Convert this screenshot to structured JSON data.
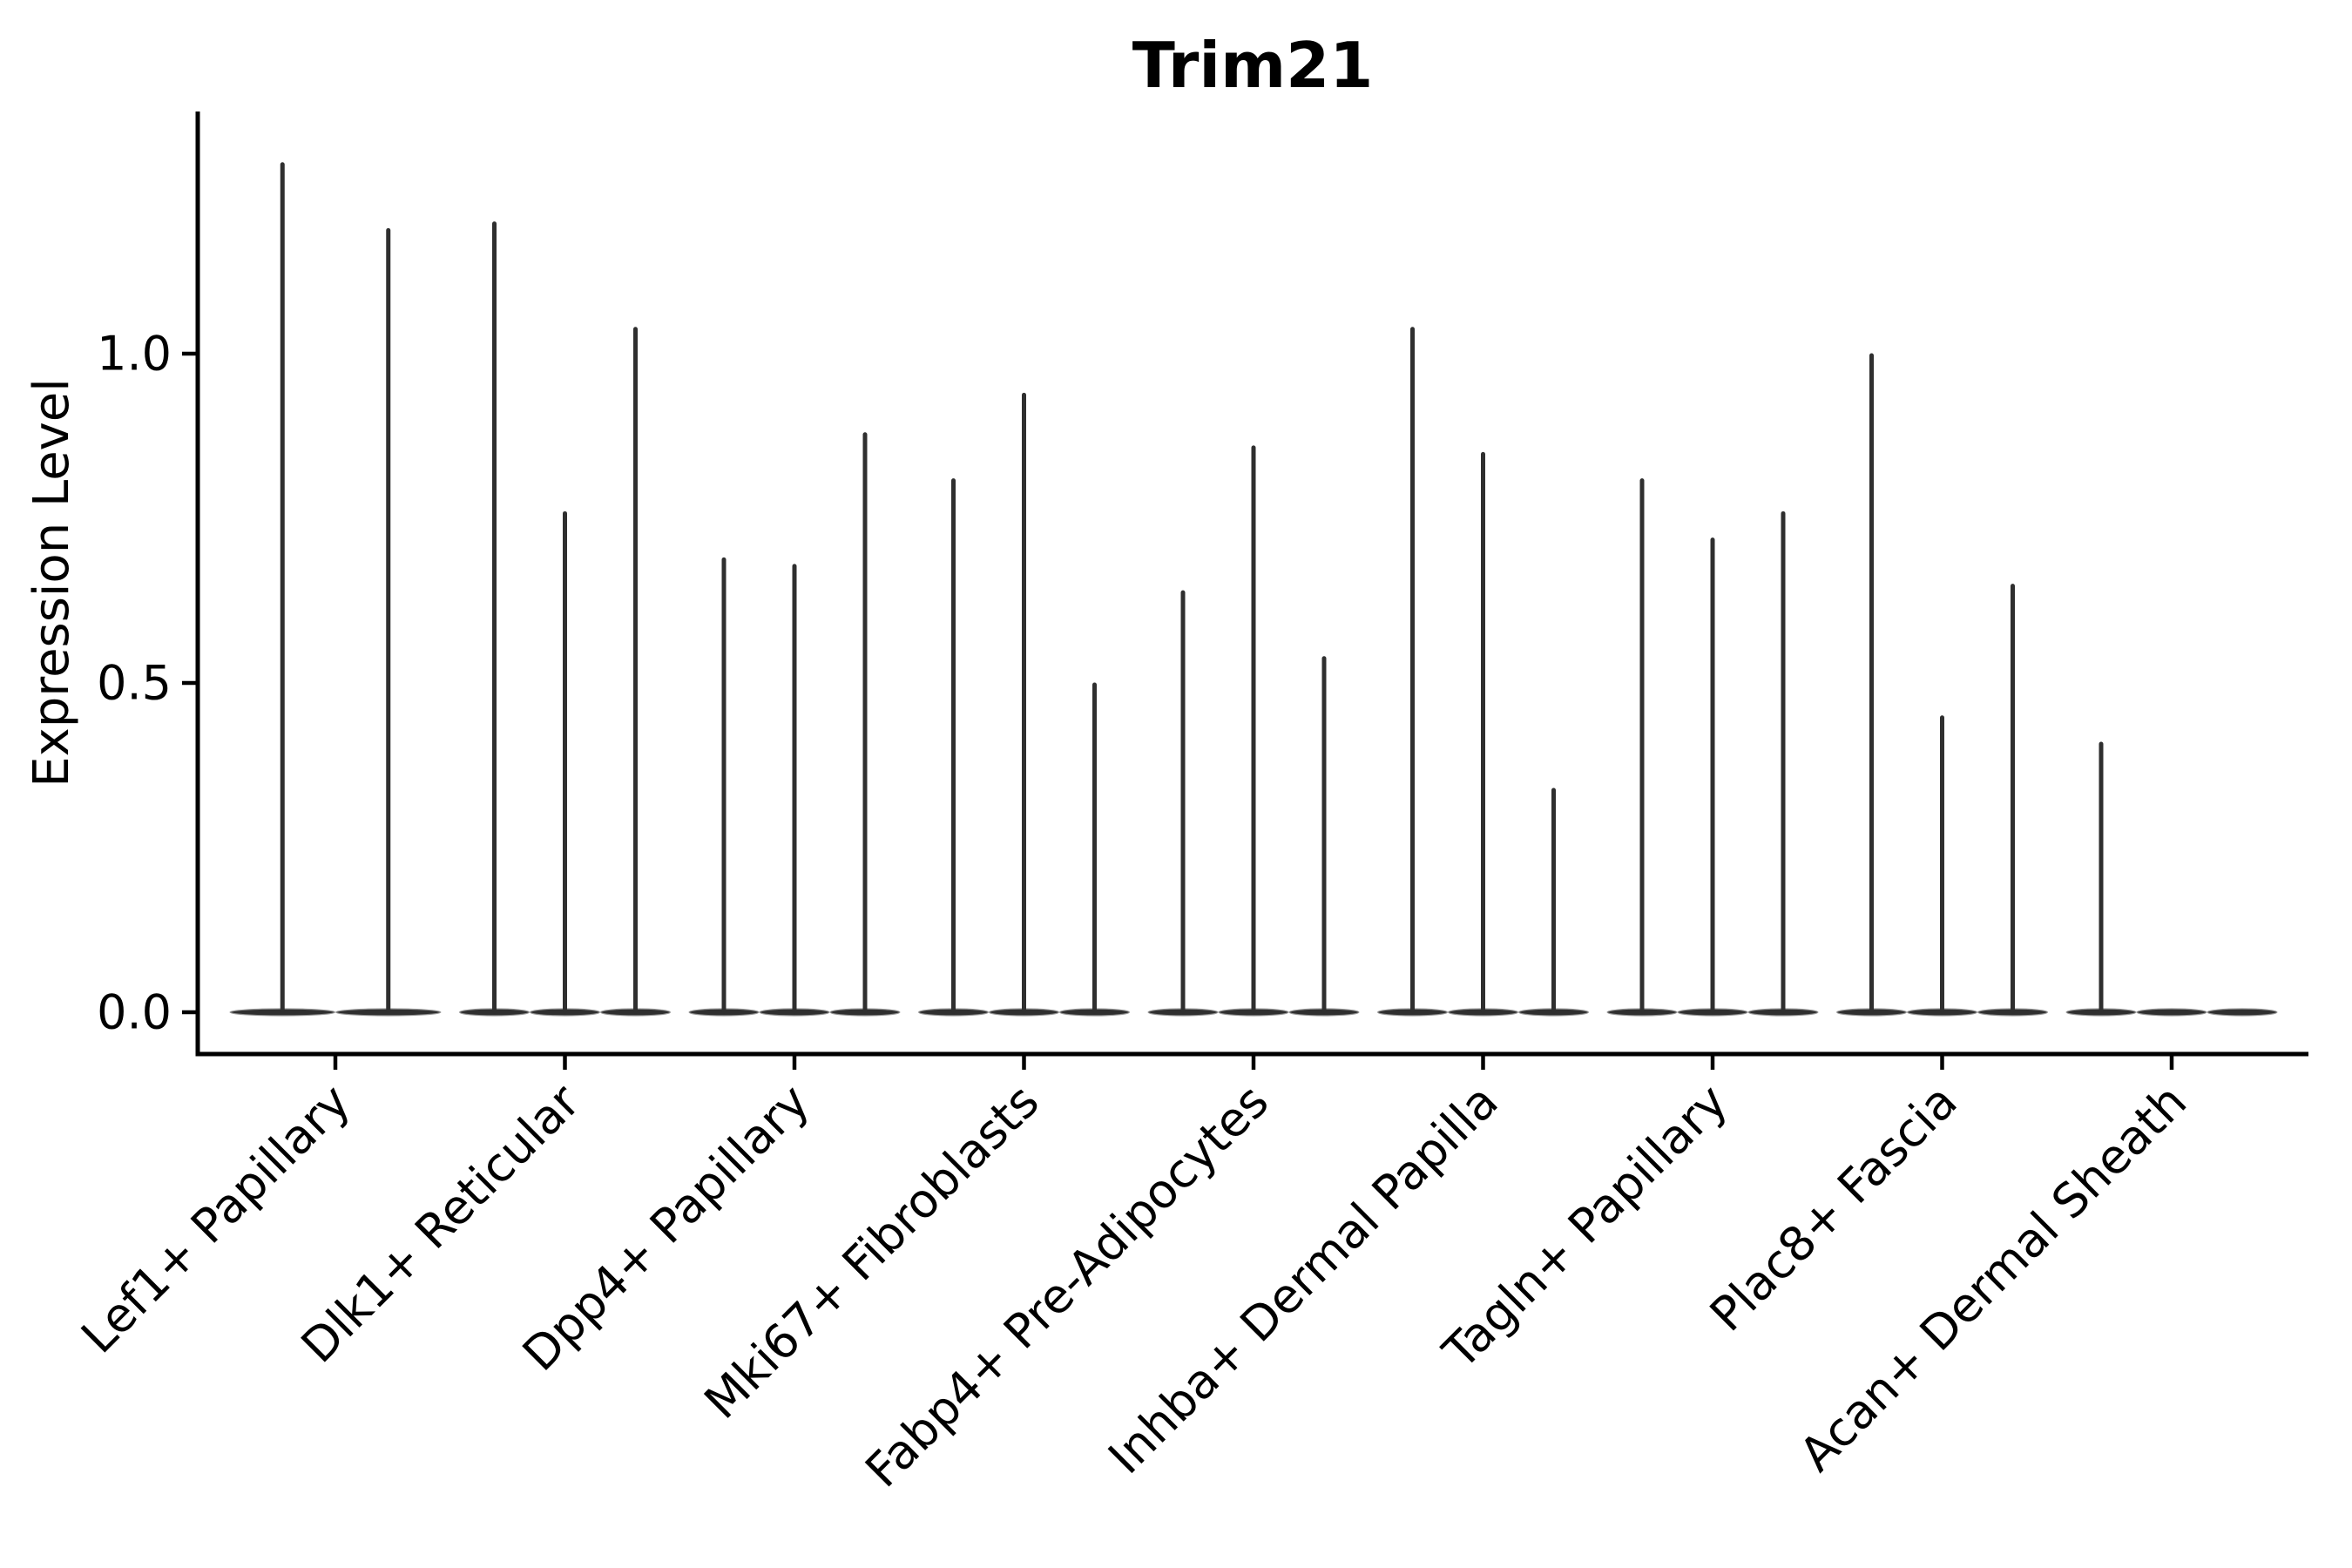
{
  "chart_data": {
    "type": "violin",
    "title": "Trim21",
    "xlabel": "",
    "ylabel": "Expression Level",
    "yticks": [
      0.0,
      0.5,
      1.0
    ],
    "ylim": [
      -0.06,
      1.37
    ],
    "categories": [
      "Lef1+ Papillary",
      "Dlk1+ Reticular",
      "Dpp4+ Papillary",
      "Mki67+ Fibroblasts",
      "Fabp4+ Pre-Adipocytes",
      "Inhba+ Dermal Papilla",
      "Tagln+ Papillary",
      "Plac8+ Fascia",
      "Acan+ Dermal Sheath"
    ],
    "series": [
      {
        "category": "Lef1+ Papillary",
        "violin_maxima": [
          1.29,
          1.19
        ]
      },
      {
        "category": "Dlk1+ Reticular",
        "violin_maxima": [
          1.2,
          0.76,
          1.04
        ]
      },
      {
        "category": "Dpp4+ Papillary",
        "violin_maxima": [
          0.69,
          0.68,
          0.88
        ]
      },
      {
        "category": "Mki67+ Fibroblasts",
        "violin_maxima": [
          0.81,
          0.94,
          0.5
        ]
      },
      {
        "category": "Fabp4+ Pre-Adipocytes",
        "violin_maxima": [
          0.64,
          0.86,
          0.54
        ]
      },
      {
        "category": "Inhba+ Dermal Papilla",
        "violin_maxima": [
          1.04,
          0.85,
          0.34
        ]
      },
      {
        "category": "Tagln+ Papillary",
        "violin_maxima": [
          0.81,
          0.72,
          0.76
        ]
      },
      {
        "category": "Plac8+ Fascia",
        "violin_maxima": [
          1.0,
          0.45,
          0.65
        ]
      },
      {
        "category": "Acan+ Dermal Sheath",
        "violin_maxima": [
          0.41,
          0,
          0
        ]
      }
    ],
    "layout_hints": {
      "grid": false,
      "legend": false,
      "x_tick_rotation_deg": 45,
      "violins_per_category_share_slot": true,
      "violin_shape": "flat base at zero with thin spike to maximum"
    },
    "style": {
      "violin_color": "#2f2f2f",
      "violin_edge_color": "#969696",
      "axis_color": "#000000",
      "background": "#ffffff"
    }
  }
}
